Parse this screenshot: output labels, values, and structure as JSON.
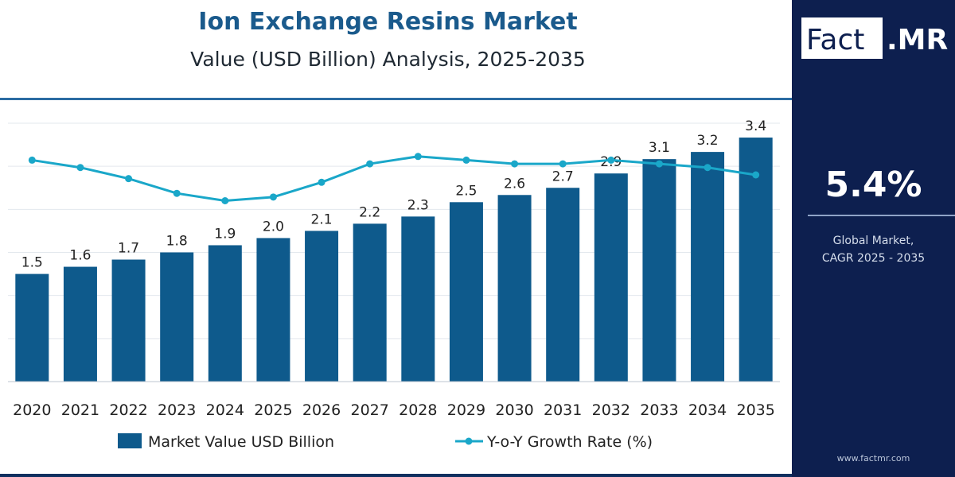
{
  "title": "Ion Exchange Resins Market",
  "subtitle": "Value (USD Billion) Analysis, 2025-2035",
  "sidebar": {
    "brand_part1": "Fact",
    "brand_part2": ".MR",
    "cagr_value": "5.4%",
    "cagr_label_line1": "Global Market,",
    "cagr_label_line2": "CAGR 2025 - 2035",
    "website": "www.factmr.com"
  },
  "colors": {
    "bar": "#0e5a8c",
    "line": "#1aa7c9",
    "sidebar_bg": "#0d1f4f",
    "title": "#1a5a8c"
  },
  "chart_data": {
    "type": "bar",
    "categories": [
      "2020",
      "2021",
      "2022",
      "2023",
      "2024",
      "2025",
      "2026",
      "2027",
      "2028",
      "2029",
      "2030",
      "2031",
      "2032",
      "2033",
      "2034",
      "2035"
    ],
    "series": [
      {
        "name": "Market Value USD Billion",
        "type": "bar",
        "values": [
          1.5,
          1.6,
          1.7,
          1.8,
          1.9,
          2.0,
          2.1,
          2.2,
          2.3,
          2.5,
          2.6,
          2.7,
          2.9,
          3.1,
          3.2,
          3.4
        ]
      },
      {
        "name": "Y-o-Y Growth Rate (%)",
        "type": "line",
        "values": [
          6.0,
          5.8,
          5.5,
          5.1,
          4.9,
          5.0,
          5.4,
          5.9,
          6.1,
          6.0,
          5.9,
          5.9,
          6.0,
          5.9,
          5.8,
          5.6
        ]
      }
    ],
    "ylim": [
      0,
      3.6
    ],
    "line_ylim": [
      0,
      7
    ],
    "grid": true,
    "legend_position": "bottom"
  }
}
